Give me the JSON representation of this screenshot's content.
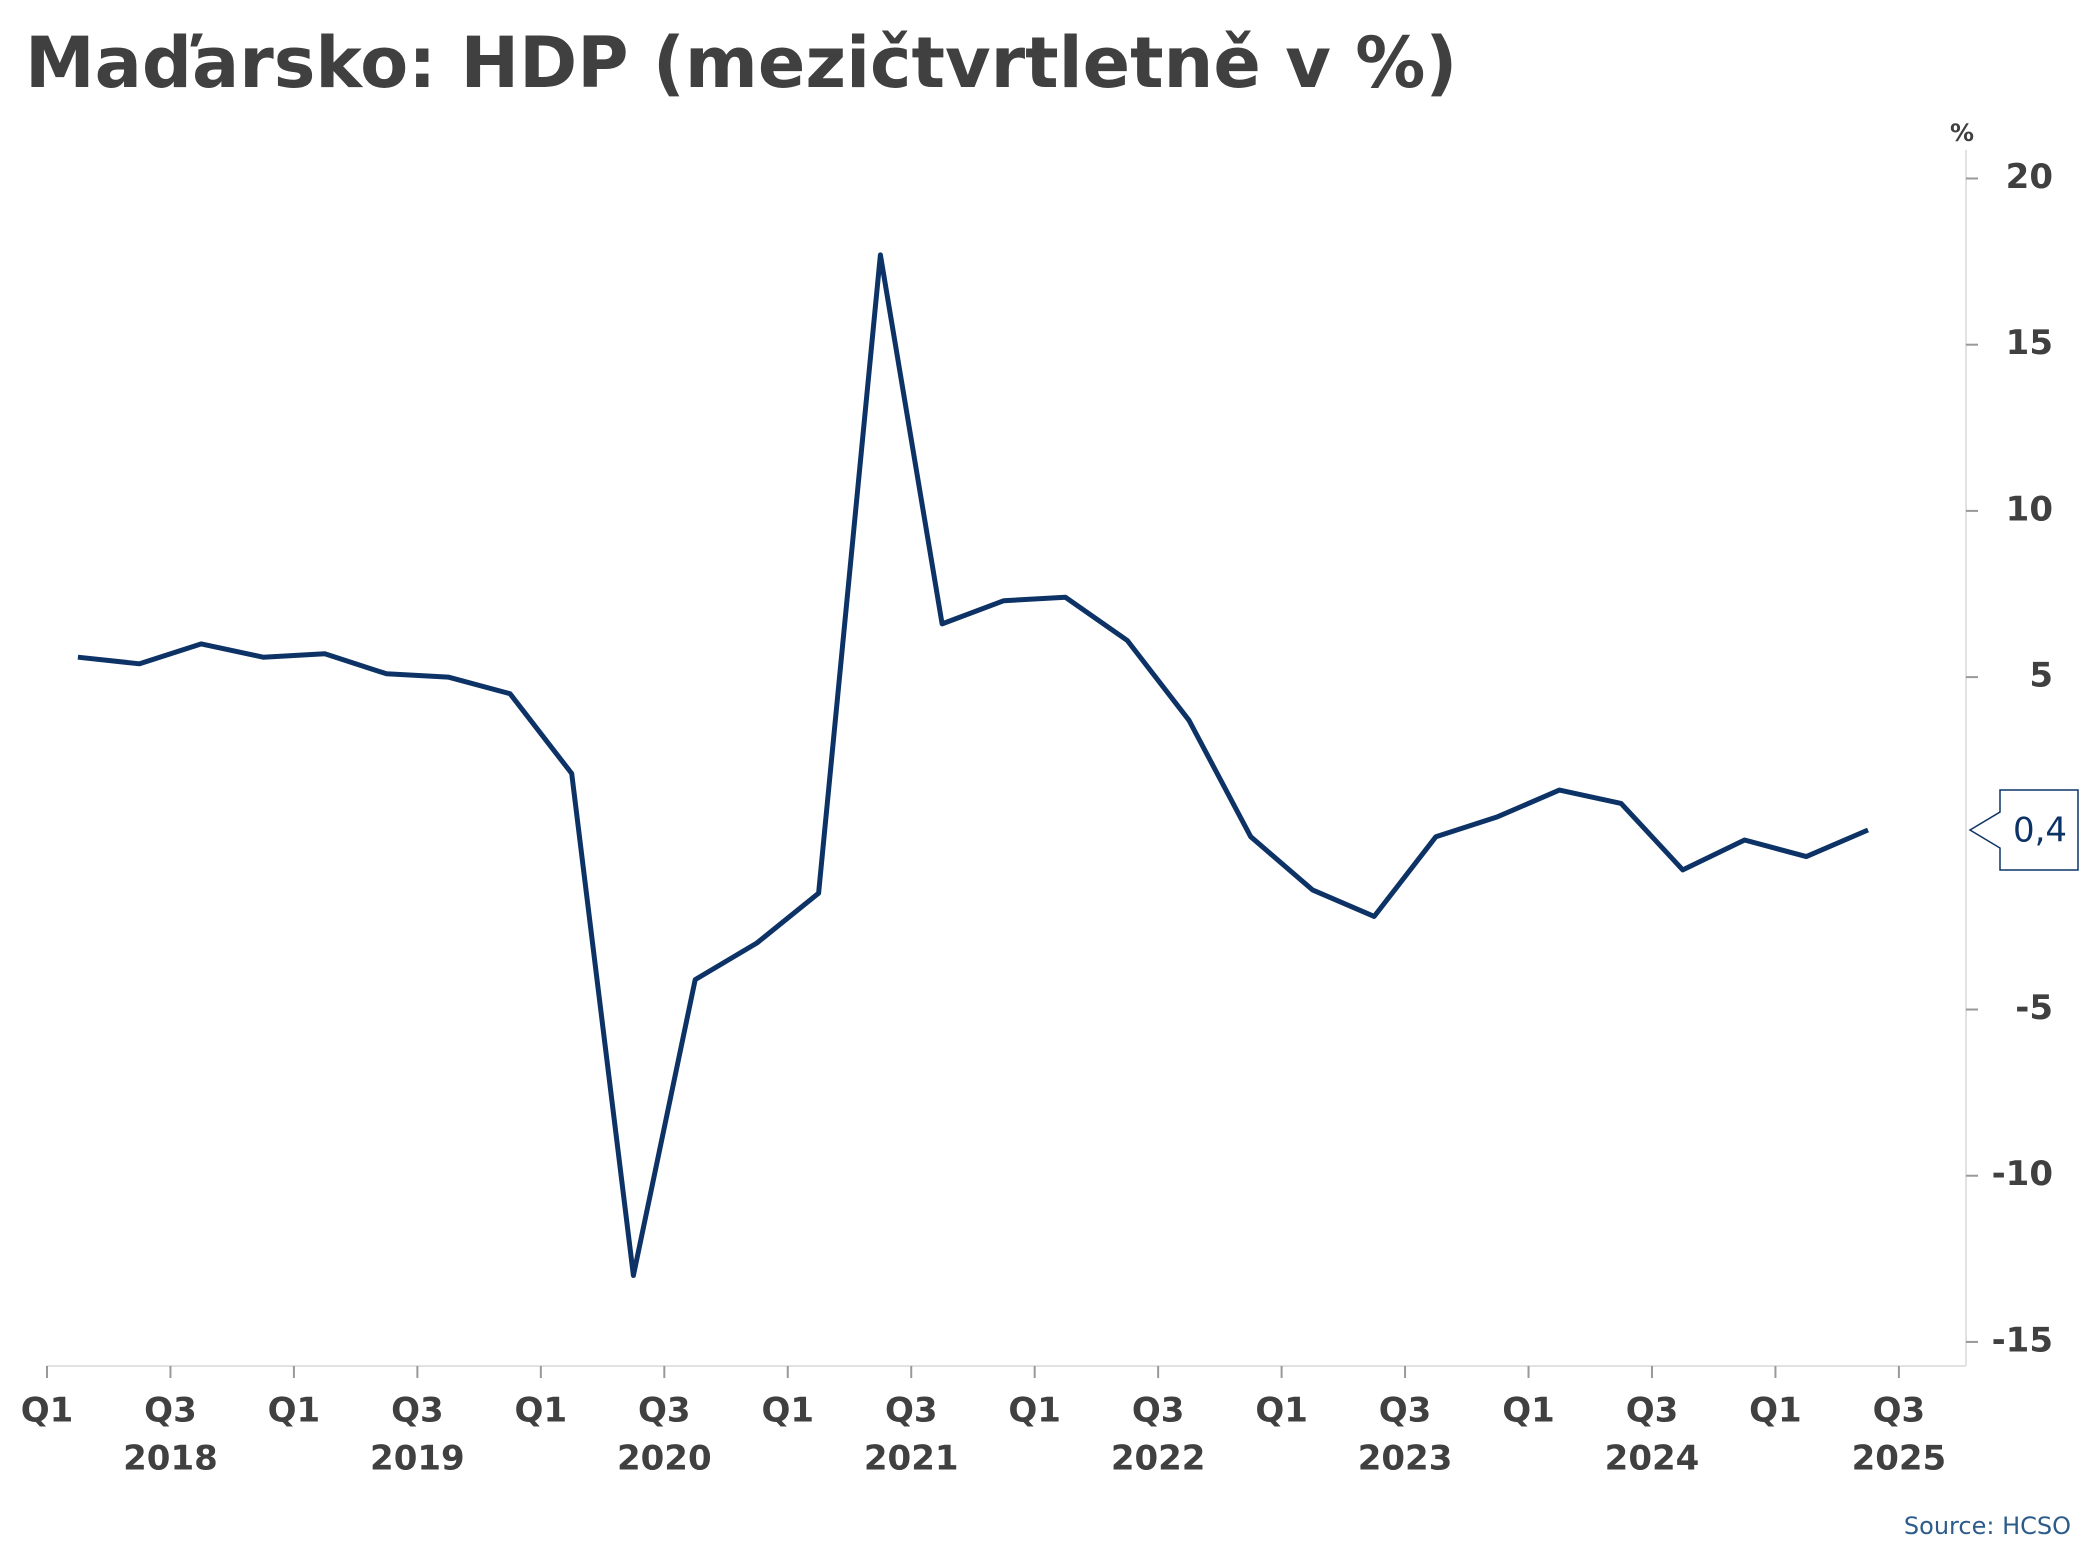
{
  "chart_data": {
    "type": "line",
    "title": "Maďarsko: HDP (mezičtvrtletně v %)",
    "y_unit": "%",
    "source": "Source: HCSO",
    "categories": [
      "Q1",
      null,
      "Q3",
      null,
      "Q1",
      null,
      "Q3",
      null,
      "Q1",
      null,
      "Q3",
      null,
      "Q1",
      null,
      "Q3",
      null,
      "Q1",
      null,
      "Q3",
      null,
      "Q1",
      null,
      "Q3",
      null,
      "Q1",
      null,
      "Q3",
      null,
      "Q1",
      null,
      "Q3"
    ],
    "years": [
      "2018",
      "2019",
      "2020",
      "2021",
      "2022",
      "2023",
      "2024",
      "2025"
    ],
    "values": [
      5.6,
      5.4,
      6.0,
      5.6,
      5.7,
      5.1,
      5.0,
      4.5,
      2.1,
      -13.0,
      -4.1,
      -3.0,
      -1.5,
      17.7,
      6.6,
      7.3,
      7.4,
      6.1,
      3.7,
      0.2,
      -1.4,
      -2.2,
      0.2,
      0.8,
      1.6,
      1.2,
      -0.8,
      0.1,
      -0.4,
      0.4,
      null
    ],
    "value_labels": [
      null,
      null,
      null,
      null,
      null,
      null,
      null,
      null,
      null,
      null,
      null,
      null,
      null,
      null,
      null,
      null,
      null,
      null,
      null,
      null,
      null,
      null,
      null,
      null,
      null,
      null,
      null,
      null,
      null,
      "0,4",
      null
    ],
    "color": "#0d3366",
    "ylim": [
      -15.8,
      20.7
    ],
    "yticks": [
      20,
      15,
      10,
      5,
      -5,
      -10,
      -15
    ]
  }
}
